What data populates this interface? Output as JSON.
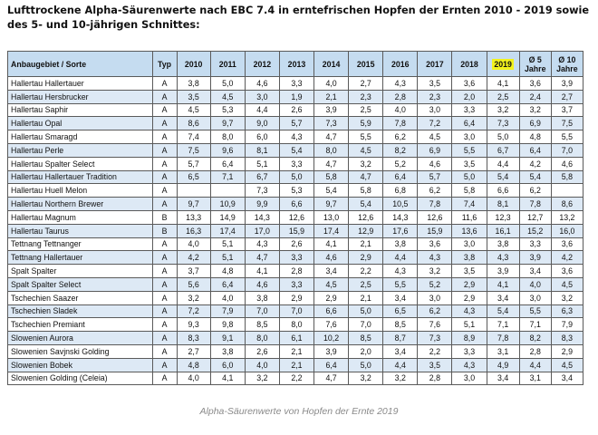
{
  "title": "Lufttrockene Alpha-Säurenwerte nach EBC 7.4 in erntefrischen Hopfen der Ernten 2010 - 2019 sowie des 5- und 10-jährigen Schnittes:",
  "headers": {
    "variety": "Anbaugebiet / Sorte",
    "type": "Typ",
    "years": [
      "2010",
      "2011",
      "2012",
      "2013",
      "2014",
      "2015",
      "2016",
      "2017",
      "2018",
      "2019"
    ],
    "avg5_line1": "Ø 5",
    "avg5_line2": "Jahre",
    "avg10_line1": "Ø 10",
    "avg10_line2": "Jahre"
  },
  "highlight_color": "#f2f21c",
  "header_color": "#c5dcf0",
  "stripe_color": "#dde9f5",
  "rows": [
    {
      "name": "Hallertau Hallertauer",
      "type": "A",
      "values": [
        "3,8",
        "5,0",
        "4,6",
        "3,3",
        "4,0",
        "2,7",
        "4,3",
        "3,5",
        "3,6",
        "4,1",
        "3,6",
        "3,9"
      ]
    },
    {
      "name": "Hallertau Hersbrucker",
      "type": "A",
      "values": [
        "3,5",
        "4,5",
        "3,0",
        "1,9",
        "2,1",
        "2,3",
        "2,8",
        "2,3",
        "2,0",
        "2,5",
        "2,4",
        "2,7"
      ]
    },
    {
      "name": "Hallertau  Saphir",
      "type": "A",
      "values": [
        "4,5",
        "5,3",
        "4,4",
        "2,6",
        "3,9",
        "2,5",
        "4,0",
        "3,0",
        "3,3",
        "3,2",
        "3,2",
        "3,7"
      ]
    },
    {
      "name": "Hallertau Opal",
      "type": "A",
      "values": [
        "8,6",
        "9,7",
        "9,0",
        "5,7",
        "7,3",
        "5,9",
        "7,8",
        "7,2",
        "6,4",
        "7,3",
        "6,9",
        "7,5"
      ]
    },
    {
      "name": "Hallertau Smaragd",
      "type": "A",
      "values": [
        "7,4",
        "8,0",
        "6,0",
        "4,3",
        "4,7",
        "5,5",
        "6,2",
        "4,5",
        "3,0",
        "5,0",
        "4,8",
        "5,5"
      ]
    },
    {
      "name": "Hallertau Perle",
      "type": "A",
      "values": [
        "7,5",
        "9,6",
        "8,1",
        "5,4",
        "8,0",
        "4,5",
        "8,2",
        "6,9",
        "5,5",
        "6,7",
        "6,4",
        "7,0"
      ]
    },
    {
      "name": "Hallertau Spalter Select",
      "type": "A",
      "values": [
        "5,7",
        "6,4",
        "5,1",
        "3,3",
        "4,7",
        "3,2",
        "5,2",
        "4,6",
        "3,5",
        "4,4",
        "4,2",
        "4,6"
      ]
    },
    {
      "name": "Hallertau Hallertauer Tradition",
      "type": "A",
      "values": [
        "6,5",
        "7,1",
        "6,7",
        "5,0",
        "5,8",
        "4,7",
        "6,4",
        "5,7",
        "5,0",
        "5,4",
        "5,4",
        "5,8"
      ]
    },
    {
      "name": "Hallertau Huell Melon",
      "type": "A",
      "values": [
        "",
        "",
        "7,3",
        "5,3",
        "5,4",
        "5,8",
        "6,8",
        "6,2",
        "5,8",
        "6,6",
        "6,2",
        ""
      ]
    },
    {
      "name": "Hallertau Northern Brewer",
      "type": "A",
      "values": [
        "9,7",
        "10,9",
        "9,9",
        "6,6",
        "9,7",
        "5,4",
        "10,5",
        "7,8",
        "7,4",
        "8,1",
        "7,8",
        "8,6"
      ]
    },
    {
      "name": "Hallertau Magnum",
      "type": "B",
      "values": [
        "13,3",
        "14,9",
        "14,3",
        "12,6",
        "13,0",
        "12,6",
        "14,3",
        "12,6",
        "11,6",
        "12,3",
        "12,7",
        "13,2"
      ]
    },
    {
      "name": "Hallertau Taurus",
      "type": "B",
      "values": [
        "16,3",
        "17,4",
        "17,0",
        "15,9",
        "17,4",
        "12,9",
        "17,6",
        "15,9",
        "13,6",
        "16,1",
        "15,2",
        "16,0"
      ]
    },
    {
      "name": "Tettnang Tettnanger",
      "type": "A",
      "values": [
        "4,0",
        "5,1",
        "4,3",
        "2,6",
        "4,1",
        "2,1",
        "3,8",
        "3,6",
        "3,0",
        "3,8",
        "3,3",
        "3,6"
      ]
    },
    {
      "name": "Tettnang Hallertauer",
      "type": "A",
      "values": [
        "4,2",
        "5,1",
        "4,7",
        "3,3",
        "4,6",
        "2,9",
        "4,4",
        "4,3",
        "3,8",
        "4,3",
        "3,9",
        "4,2"
      ]
    },
    {
      "name": "Spalt Spalter",
      "type": "A",
      "values": [
        "3,7",
        "4,8",
        "4,1",
        "2,8",
        "3,4",
        "2,2",
        "4,3",
        "3,2",
        "3,5",
        "3,9",
        "3,4",
        "3,6"
      ]
    },
    {
      "name": "Spalt Spalter Select",
      "type": "A",
      "values": [
        "5,6",
        "6,4",
        "4,6",
        "3,3",
        "4,5",
        "2,5",
        "5,5",
        "5,2",
        "2,9",
        "4,1",
        "4,0",
        "4,5"
      ]
    },
    {
      "name": "Tschechien Saazer",
      "type": "A",
      "values": [
        "3,2",
        "4,0",
        "3,8",
        "2,9",
        "2,9",
        "2,1",
        "3,4",
        "3,0",
        "2,9",
        "3,4",
        "3,0",
        "3,2"
      ]
    },
    {
      "name": "Tschechien Sladek",
      "type": "A",
      "values": [
        "7,2",
        "7,9",
        "7,0",
        "7,0",
        "6,6",
        "5,0",
        "6,5",
        "6,2",
        "4,3",
        "5,4",
        "5,5",
        "6,3"
      ]
    },
    {
      "name": "Tschechien Premiant",
      "type": "A",
      "values": [
        "9,3",
        "9,8",
        "8,5",
        "8,0",
        "7,6",
        "7,0",
        "8,5",
        "7,6",
        "5,1",
        "7,1",
        "7,1",
        "7,9"
      ]
    },
    {
      "name": "Slowenien Aurora",
      "type": "A",
      "values": [
        "8,3",
        "9,1",
        "8,0",
        "6,1",
        "10,2",
        "8,5",
        "8,7",
        "7,3",
        "8,9",
        "7,8",
        "8,2",
        "8,3"
      ]
    },
    {
      "name": "Slowenien Savjnski Golding",
      "type": "A",
      "values": [
        "2,7",
        "3,8",
        "2,6",
        "2,1",
        "3,9",
        "2,0",
        "3,4",
        "2,2",
        "3,3",
        "3,1",
        "2,8",
        "2,9"
      ]
    },
    {
      "name": "Slowenien Bobek",
      "type": "A",
      "values": [
        "4,8",
        "6,0",
        "4,0",
        "2,1",
        "6,4",
        "5,0",
        "4,4",
        "3,5",
        "4,3",
        "4,9",
        "4,4",
        "4,5"
      ]
    },
    {
      "name": "Slowenien Golding (Celeia)",
      "type": "A",
      "values": [
        "4,0",
        "4,1",
        "3,2",
        "2,2",
        "4,7",
        "3,2",
        "3,2",
        "2,8",
        "3,0",
        "3,4",
        "3,1",
        "3,4"
      ]
    }
  ],
  "caption": "Alpha-Säurenwerte von Hopfen der Ernte 2019"
}
